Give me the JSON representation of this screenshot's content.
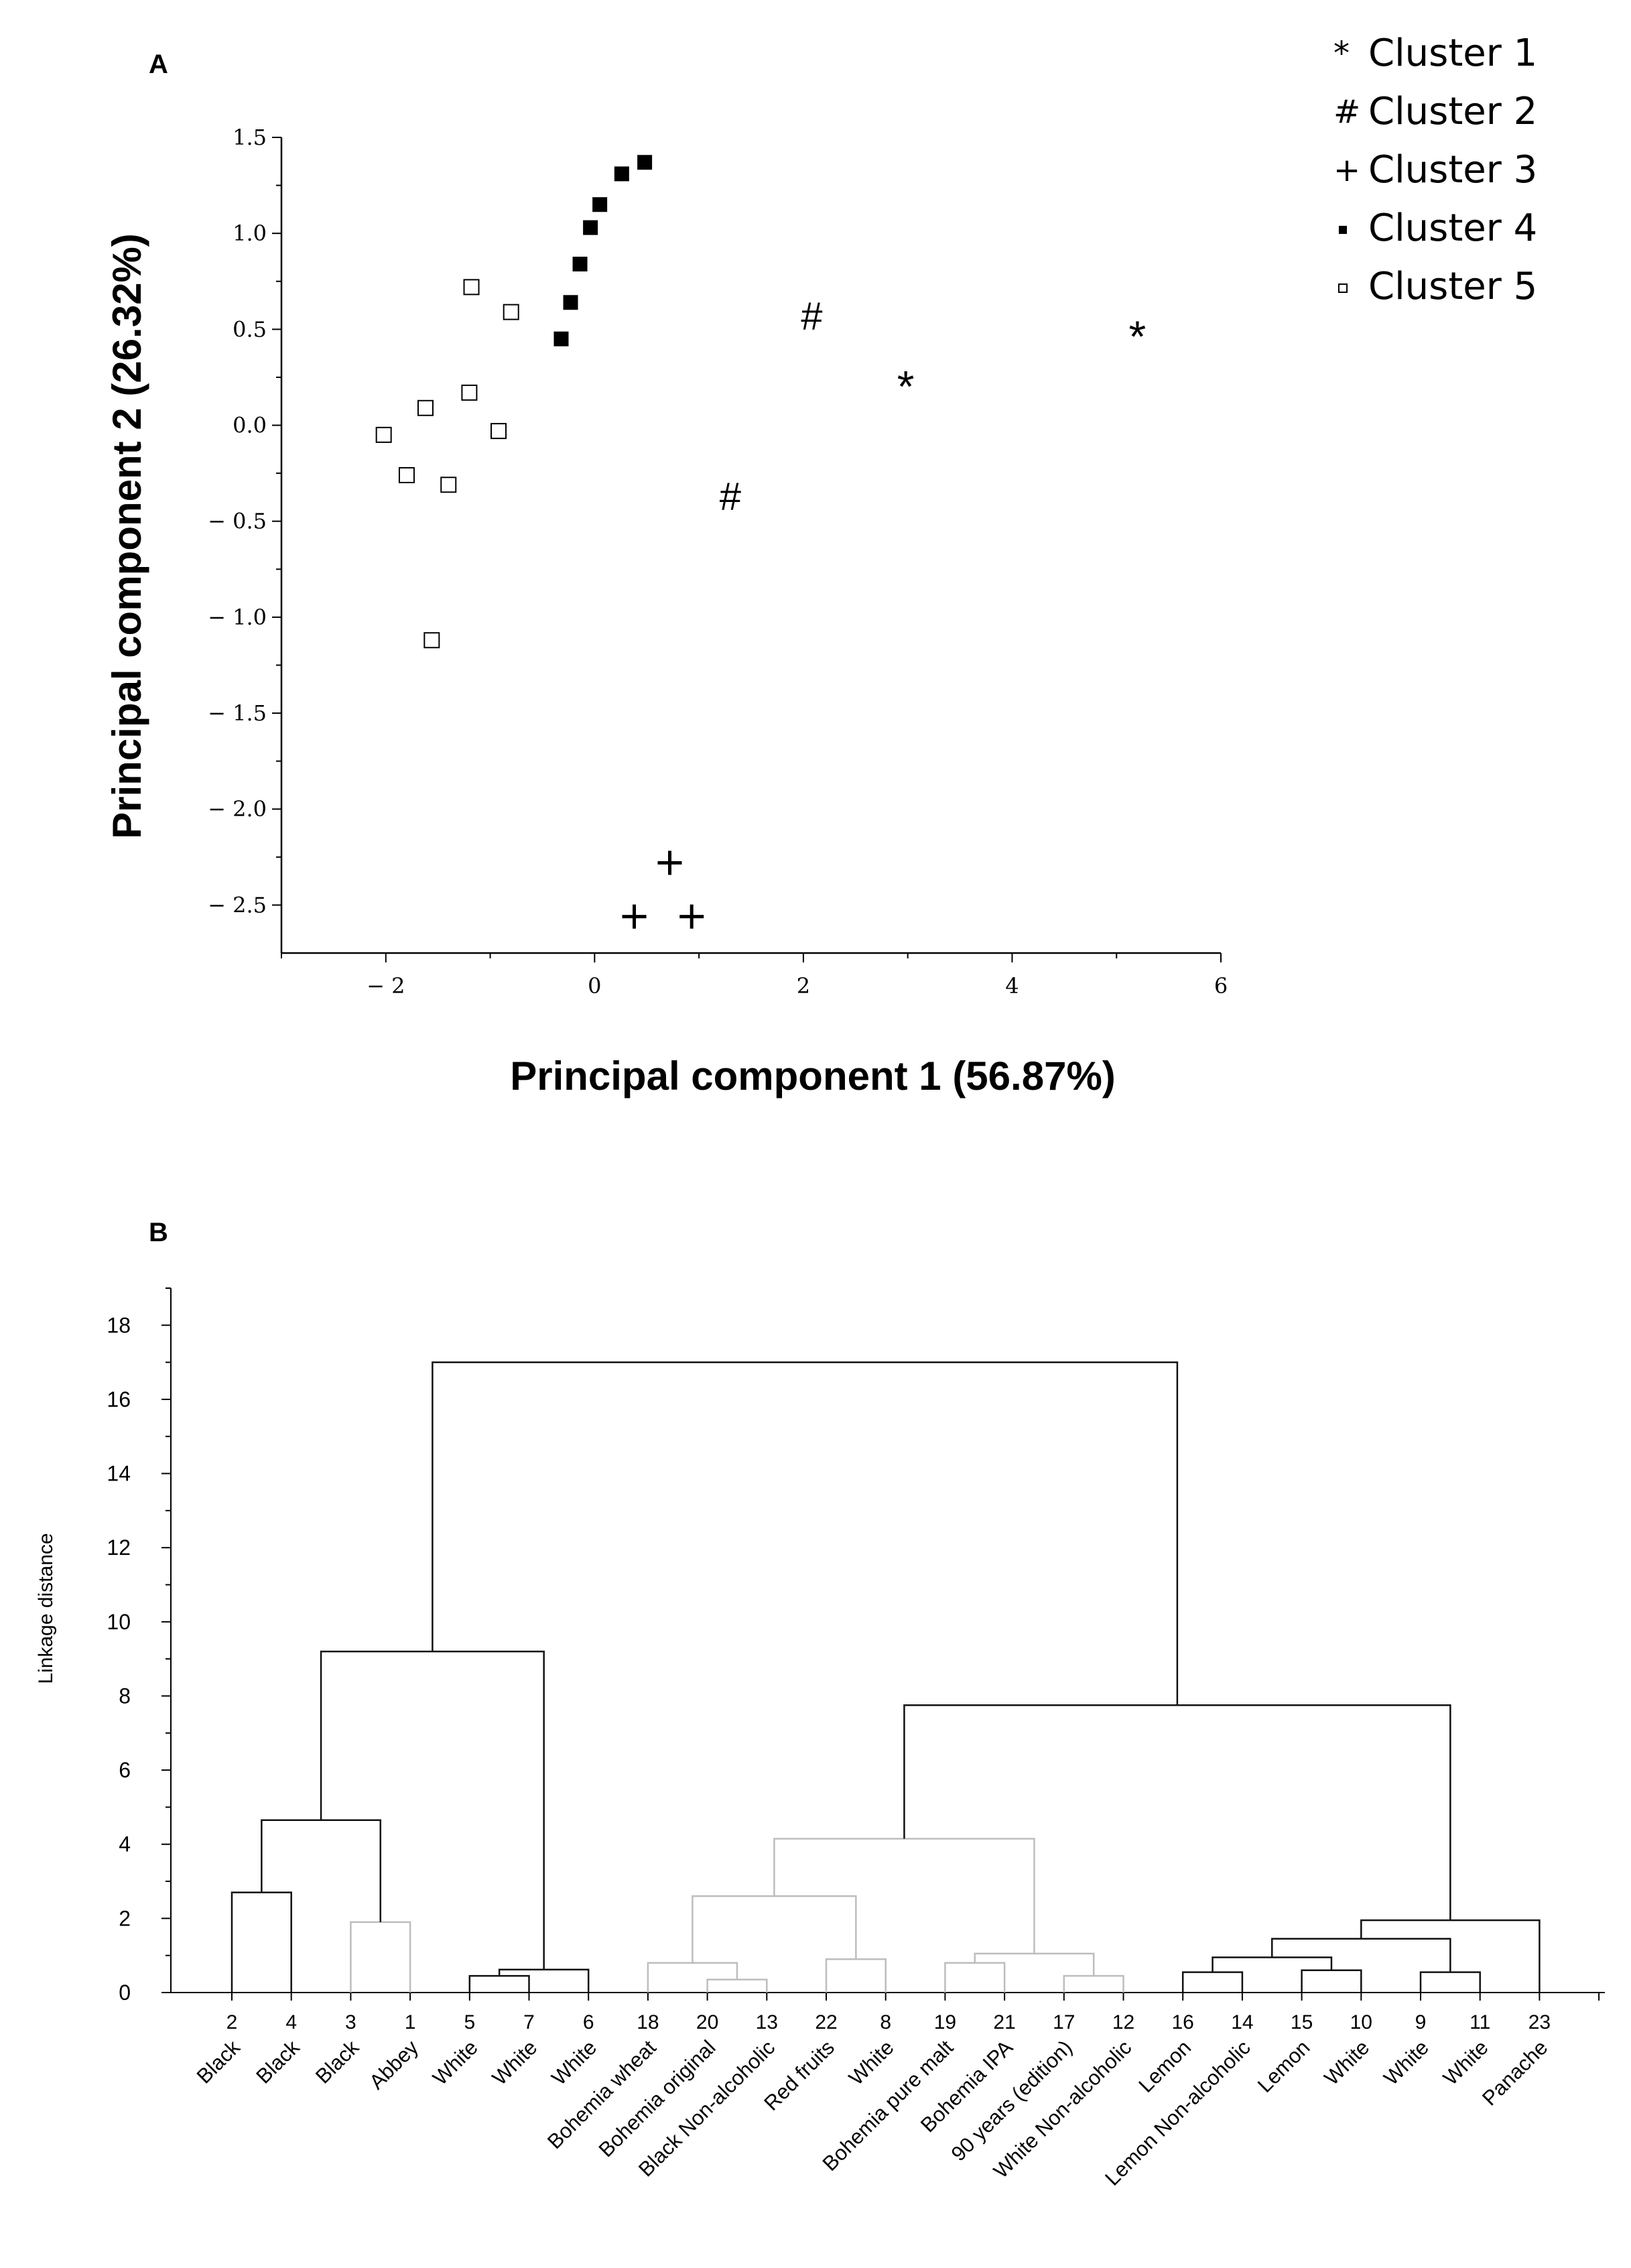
{
  "chart_data": [
    {
      "panel": "A",
      "type": "scatter",
      "xlabel": "Principal component 1 (56.87%)",
      "ylabel": "Principal component 2 (26.32%)",
      "xlim": [
        -3,
        6
      ],
      "ylim": [
        -2.75,
        1.5
      ],
      "x_ticks": [
        -2,
        0,
        2,
        4,
        6
      ],
      "x_tick_labels": [
        "− 2",
        "0",
        "2",
        "4",
        "6"
      ],
      "y_ticks": [
        1.5,
        1.0,
        0.5,
        0.0,
        -0.5,
        -1.0,
        -1.5,
        -2.0,
        -2.5
      ],
      "y_tick_labels": [
        "1.5",
        "1.0",
        "0.5",
        "0.0",
        "− 0.5",
        "− 1.0",
        "− 1.5",
        "− 2.0",
        "− 2.5"
      ],
      "legend_position": "top-right",
      "series": [
        {
          "name": "Cluster 1",
          "marker": "*",
          "points": [
            [
              2.98,
              0.22
            ],
            [
              5.2,
              0.48
            ]
          ]
        },
        {
          "name": "Cluster 2",
          "marker": "#",
          "points": [
            [
              2.08,
              0.57
            ],
            [
              1.3,
              -0.37
            ]
          ]
        },
        {
          "name": "Cluster 3",
          "marker": "+",
          "points": [
            [
              0.72,
              -2.28
            ],
            [
              0.38,
              -2.56
            ],
            [
              0.93,
              -2.56
            ]
          ]
        },
        {
          "name": "Cluster 4",
          "marker": "■",
          "points": [
            [
              -0.32,
              0.45
            ],
            [
              -0.23,
              0.64
            ],
            [
              -0.14,
              0.84
            ],
            [
              -0.04,
              1.03
            ],
            [
              0.05,
              1.15
            ],
            [
              0.26,
              1.31
            ],
            [
              0.48,
              1.37
            ]
          ]
        },
        {
          "name": "Cluster 5",
          "marker": "□",
          "points": [
            [
              -1.18,
              0.72
            ],
            [
              -0.8,
              0.59
            ],
            [
              -1.2,
              0.17
            ],
            [
              -1.62,
              0.09
            ],
            [
              -2.02,
              -0.05
            ],
            [
              -0.92,
              -0.03
            ],
            [
              -1.8,
              -0.26
            ],
            [
              -1.4,
              -0.31
            ],
            [
              -1.56,
              -1.12
            ]
          ]
        }
      ]
    },
    {
      "panel": "B",
      "type": "dendrogram",
      "ylabel": "Linkage distance",
      "ylim": [
        0,
        19
      ],
      "y_ticks": [
        0,
        2,
        4,
        6,
        8,
        10,
        12,
        14,
        16,
        18
      ],
      "y_tick_labels": [
        "0",
        "2",
        "4",
        "6",
        "8",
        "10",
        "12",
        "14",
        "16",
        "18"
      ],
      "leaves": [
        {
          "id": "2",
          "name": "Black"
        },
        {
          "id": "4",
          "name": "Black"
        },
        {
          "id": "3",
          "name": "Black"
        },
        {
          "id": "1",
          "name": "Abbey"
        },
        {
          "id": "5",
          "name": "White"
        },
        {
          "id": "7",
          "name": "White"
        },
        {
          "id": "6",
          "name": "White"
        },
        {
          "id": "18",
          "name": "Bohemia wheat"
        },
        {
          "id": "20",
          "name": "Bohemia original"
        },
        {
          "id": "13",
          "name": "Black Non-alcoholic"
        },
        {
          "id": "22",
          "name": "Red fruits"
        },
        {
          "id": "8",
          "name": "White"
        },
        {
          "id": "19",
          "name": "Bohemia pure malt"
        },
        {
          "id": "21",
          "name": "Bohemia IPA"
        },
        {
          "id": "17",
          "name": "90 years (edition)"
        },
        {
          "id": "12",
          "name": "White Non-alcoholic"
        },
        {
          "id": "16",
          "name": "Lemon"
        },
        {
          "id": "14",
          "name": "Lemon Non-alcoholic"
        },
        {
          "id": "15",
          "name": "Lemon"
        },
        {
          "id": "10",
          "name": "White"
        },
        {
          "id": "9",
          "name": "White"
        },
        {
          "id": "11",
          "name": "White"
        },
        {
          "id": "23",
          "name": "Panache"
        }
      ],
      "merges": [
        {
          "left": "L0",
          "right": "L1",
          "height": 2.7,
          "id": "m1"
        },
        {
          "left": "L2",
          "right": "L3",
          "height": 1.9,
          "id": "m2"
        },
        {
          "left": "m1",
          "right": "m2",
          "height": 4.65,
          "id": "m3"
        },
        {
          "left": "L4",
          "right": "L5",
          "height": 0.45,
          "id": "m4"
        },
        {
          "left": "m4",
          "right": "L6",
          "height": 0.62,
          "id": "m5"
        },
        {
          "left": "m3",
          "right": "m5",
          "height": 9.2,
          "id": "m6"
        },
        {
          "left": "L8",
          "right": "L9",
          "height": 0.35,
          "id": "m7"
        },
        {
          "left": "L7",
          "right": "m7",
          "height": 0.8,
          "id": "m8"
        },
        {
          "left": "L10",
          "right": "L11",
          "height": 0.9,
          "id": "m9"
        },
        {
          "left": "m8",
          "right": "m9",
          "height": 2.6,
          "id": "m10"
        },
        {
          "left": "L12",
          "right": "L13",
          "height": 0.8,
          "id": "m11"
        },
        {
          "left": "L14",
          "right": "L15",
          "height": 0.45,
          "id": "m12"
        },
        {
          "left": "m11",
          "right": "m12",
          "height": 1.05,
          "id": "m13"
        },
        {
          "left": "m10",
          "right": "m13",
          "height": 4.15,
          "id": "m14"
        },
        {
          "left": "L16",
          "right": "L17",
          "height": 0.55,
          "id": "m15"
        },
        {
          "left": "L18",
          "right": "L19",
          "height": 0.6,
          "id": "m16"
        },
        {
          "left": "m15",
          "right": "m16",
          "height": 0.95,
          "id": "m17"
        },
        {
          "left": "L20",
          "right": "L21",
          "height": 0.55,
          "id": "m18"
        },
        {
          "left": "m17",
          "right": "m18",
          "height": 1.45,
          "id": "m19"
        },
        {
          "left": "m19",
          "right": "L22",
          "height": 1.95,
          "id": "m20"
        },
        {
          "left": "m14",
          "right": "m20",
          "height": 7.75,
          "id": "m21"
        },
        {
          "left": "m6",
          "right": "m21",
          "height": 17.0,
          "id": "m22"
        }
      ],
      "colors": {
        "dark": "#111111",
        "light": "#bdbdbd"
      }
    }
  ],
  "panel_labels": {
    "a": "A",
    "b": "B"
  }
}
